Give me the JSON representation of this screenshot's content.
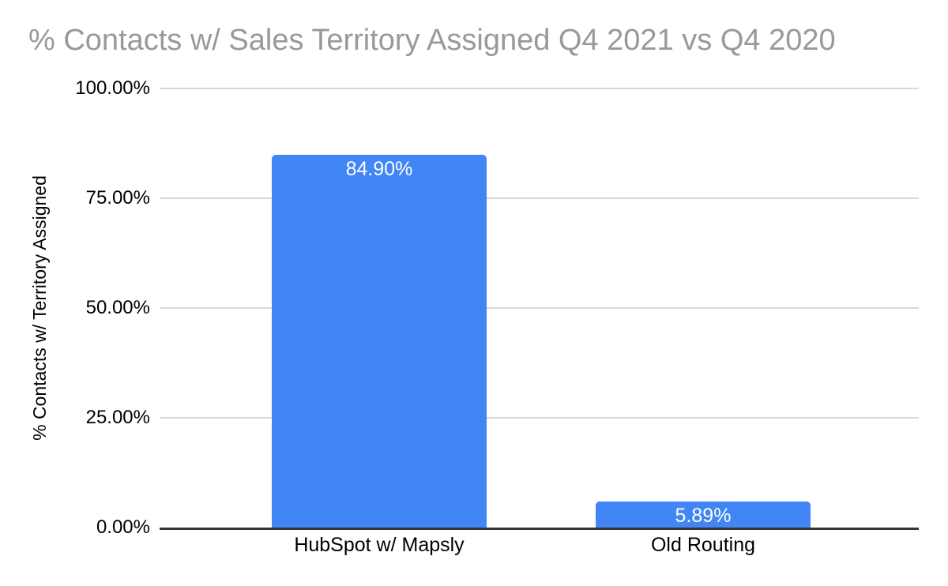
{
  "page": {
    "background": "#ffffff"
  },
  "chart_data": {
    "type": "bar",
    "title": "% Contacts w/ Sales Territory Assigned Q4 2021 vs Q4 2020",
    "title_color": "#999999",
    "xlabel": "",
    "ylabel": "% Contacts w/ Territory Assigned",
    "categories": [
      "HubSpot w/ Mapsly",
      "Old Routing"
    ],
    "values": [
      84.9,
      5.89
    ],
    "value_labels": [
      "84.90%",
      "5.89%"
    ],
    "bar_color": "#4285f4",
    "value_label_color": "#ffffff",
    "ylim": [
      0,
      100
    ],
    "yticks": [
      {
        "value": 0,
        "label": "0.00%"
      },
      {
        "value": 25,
        "label": "25.00%"
      },
      {
        "value": 50,
        "label": "50.00%"
      },
      {
        "value": 75,
        "label": "75.00%"
      },
      {
        "value": 100,
        "label": "100.00%"
      }
    ],
    "grid": true,
    "gridline_color": "#d9d9d9",
    "axis_line_color": "#333333",
    "legend_position": "none"
  }
}
